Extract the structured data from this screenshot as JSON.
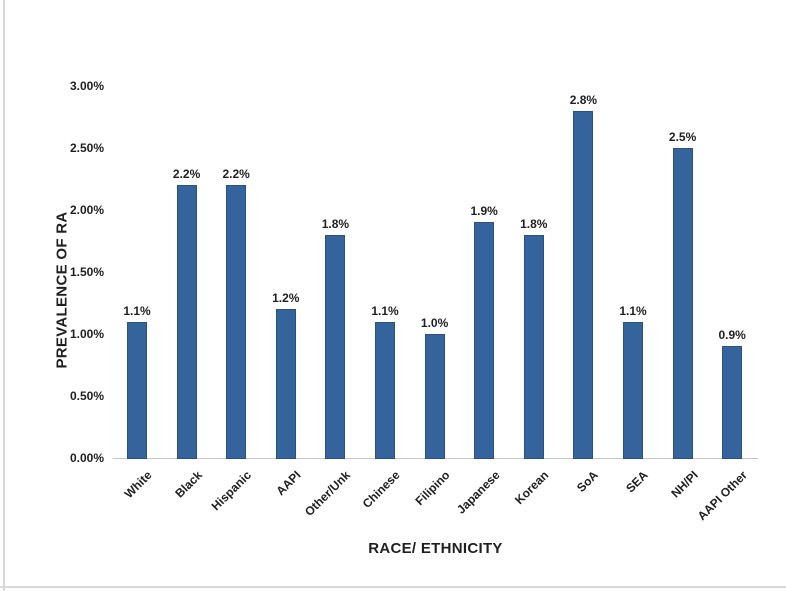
{
  "frame": {
    "border_color": "#d9d9d9",
    "background_color": "#ffffff"
  },
  "chart_data": {
    "type": "bar",
    "title": "",
    "xlabel": "RACE/ ETHNICITY",
    "ylabel": "PREVALENCE OF RA",
    "categories": [
      "White",
      "Black",
      "Hispanic",
      "AAPI",
      "Other/Unk",
      "Chinese",
      "Filipino",
      "Japanese",
      "Korean",
      "SoA",
      "SEA",
      "NH/PI",
      "AAPI Other"
    ],
    "values": [
      1.1,
      2.2,
      2.2,
      1.2,
      1.8,
      1.1,
      1.0,
      1.9,
      1.8,
      2.8,
      1.1,
      2.5,
      0.9
    ],
    "data_labels": [
      "1.1%",
      "2.2%",
      "2.2%",
      "1.2%",
      "1.8%",
      "1.1%",
      "1.0%",
      "1.9%",
      "1.8%",
      "2.8%",
      "1.1%",
      "2.5%",
      "0.9%"
    ],
    "ylim": [
      0,
      3.0
    ],
    "ytick_values": [
      0,
      0.5,
      1.0,
      1.5,
      2.0,
      2.5,
      3.0
    ],
    "ytick_labels": [
      "0.00%",
      "0.50%",
      "1.00%",
      "1.50%",
      "2.00%",
      "2.50%",
      "3.00%"
    ],
    "grid": false,
    "legend": false,
    "bar_color": "#35639B",
    "bar_border_color": "#2B5181",
    "axis_line_color": "#c6c6c6",
    "text_color": "#1f1f1f"
  }
}
